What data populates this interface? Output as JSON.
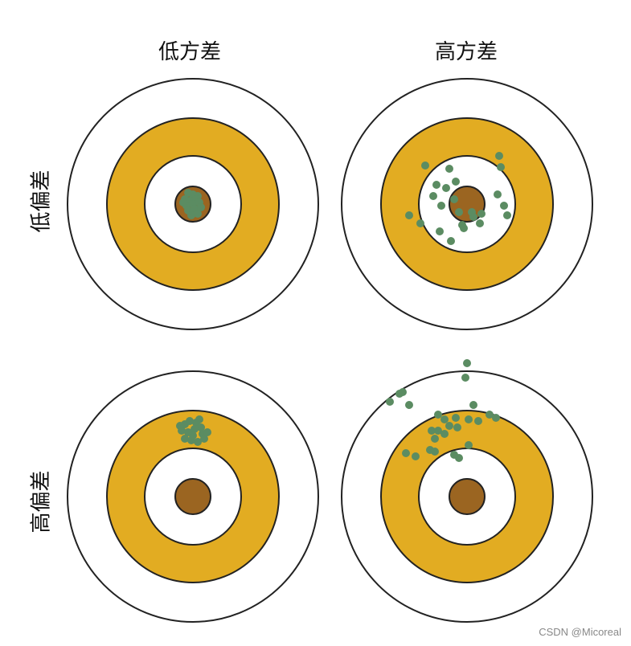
{
  "headers": {
    "col_low": "低方差",
    "col_high": "高方差",
    "row_low": "低偏差",
    "row_high": "高偏差"
  },
  "watermark": "CSDN @Micoreal",
  "colors": {
    "ring_outer": "#ffffff",
    "ring_gold": "#e2ac22",
    "ring_inner": "#ffffff",
    "bullseye": "#9b6521",
    "stroke": "#222222",
    "dot": "#5b8c62"
  },
  "targets": [
    {
      "id": "low-bias-low-variance",
      "dots": [
        [
          -6,
          -14
        ],
        [
          0,
          -12
        ],
        [
          6,
          -10
        ],
        [
          -10,
          -6
        ],
        [
          -4,
          -4
        ],
        [
          4,
          -6
        ],
        [
          -8,
          2
        ],
        [
          0,
          0
        ],
        [
          8,
          -2
        ],
        [
          -6,
          8
        ],
        [
          2,
          6
        ],
        [
          -2,
          14
        ],
        [
          6,
          12
        ],
        [
          -12,
          -2
        ],
        [
          10,
          4
        ]
      ]
    },
    {
      "id": "low-bias-high-variance",
      "dots": [
        [
          -52,
          -48
        ],
        [
          -22,
          -44
        ],
        [
          40,
          -60
        ],
        [
          42,
          -46
        ],
        [
          -38,
          -24
        ],
        [
          -26,
          -20
        ],
        [
          -14,
          -28
        ],
        [
          -42,
          -10
        ],
        [
          -32,
          2
        ],
        [
          -16,
          -6
        ],
        [
          -10,
          10
        ],
        [
          8,
          16
        ],
        [
          -6,
          26
        ],
        [
          18,
          12
        ],
        [
          38,
          -12
        ],
        [
          46,
          2
        ],
        [
          50,
          14
        ],
        [
          -72,
          14
        ],
        [
          -58,
          24
        ],
        [
          -34,
          34
        ],
        [
          -20,
          46
        ],
        [
          16,
          24
        ],
        [
          -4,
          30
        ],
        [
          6,
          10
        ]
      ]
    },
    {
      "id": "high-bias-low-variance",
      "dots": [
        [
          -10,
          -90
        ],
        [
          -4,
          -94
        ],
        [
          4,
          -92
        ],
        [
          10,
          -86
        ],
        [
          -14,
          -82
        ],
        [
          -6,
          -80
        ],
        [
          2,
          -84
        ],
        [
          12,
          -78
        ],
        [
          -10,
          -72
        ],
        [
          -2,
          -70
        ],
        [
          6,
          -68
        ],
        [
          14,
          -72
        ],
        [
          18,
          -80
        ],
        [
          -16,
          -88
        ],
        [
          8,
          -96
        ],
        [
          0,
          -76
        ]
      ]
    },
    {
      "id": "high-bias-high-variance",
      "dots": [
        [
          -80,
          -130
        ],
        [
          -84,
          -128
        ],
        [
          -96,
          -118
        ],
        [
          -72,
          -114
        ],
        [
          -2,
          -148
        ],
        [
          0,
          -166
        ],
        [
          8,
          -114
        ],
        [
          -36,
          -102
        ],
        [
          -28,
          -96
        ],
        [
          -22,
          -88
        ],
        [
          -44,
          -82
        ],
        [
          -36,
          -82
        ],
        [
          -28,
          -78
        ],
        [
          -12,
          -86
        ],
        [
          -14,
          -98
        ],
        [
          2,
          -96
        ],
        [
          14,
          -94
        ],
        [
          28,
          -102
        ],
        [
          36,
          -98
        ],
        [
          -40,
          -72
        ],
        [
          -46,
          -58
        ],
        [
          -40,
          -56
        ],
        [
          -76,
          -54
        ],
        [
          -64,
          -50
        ],
        [
          -10,
          -48
        ],
        [
          -16,
          -52
        ],
        [
          2,
          -64
        ]
      ]
    }
  ]
}
